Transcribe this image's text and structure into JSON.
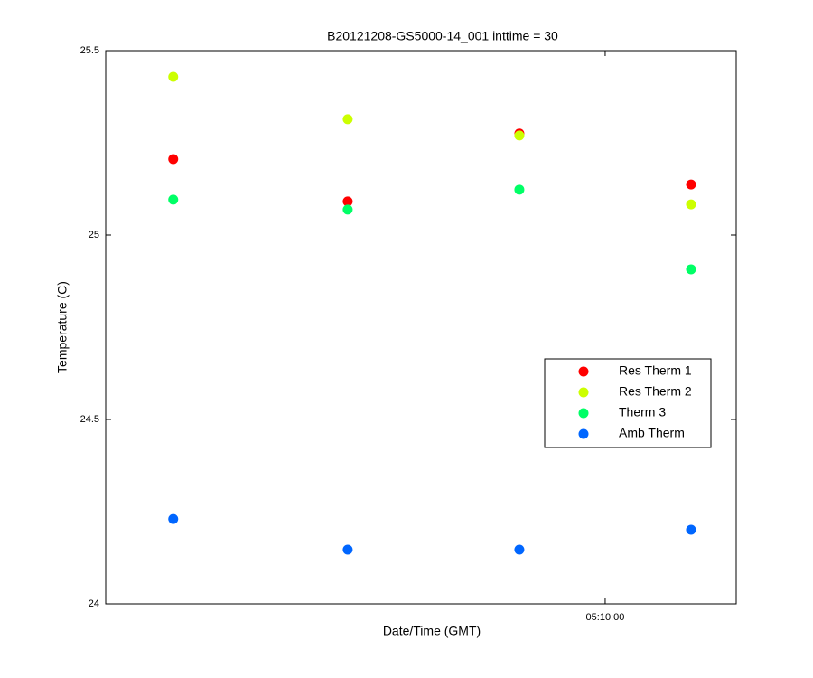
{
  "chart_data": {
    "type": "scatter",
    "title": "B20121208-GS5000-14_001 inttime = 30",
    "xlabel": "Date/Time (GMT)",
    "ylabel": "Temperature (C)",
    "x": [
      18524.5,
      18555,
      18585,
      18615
    ],
    "series": [
      {
        "name": "Res Therm 1",
        "color": "#ff0000",
        "values": [
          25.206,
          25.091,
          25.275,
          25.137
        ]
      },
      {
        "name": "Res Therm 2",
        "color": "#ccff00",
        "values": [
          25.429,
          25.314,
          25.27,
          25.083
        ]
      },
      {
        "name": "Therm 3",
        "color": "#00ff66",
        "values": [
          25.096,
          25.069,
          25.123,
          24.907
        ]
      },
      {
        "name": "Amb Therm",
        "color": "#0066ff",
        "values": [
          24.23,
          24.147,
          24.147,
          24.201
        ]
      }
    ],
    "xlim": [
      18512.7,
      18622.9
    ],
    "xticks": [
      {
        "value": 18600,
        "label": "05:10:00"
      }
    ],
    "ylim": [
      24,
      25.5
    ],
    "yticks": [
      24,
      24.5,
      25,
      25.5
    ],
    "grid": false,
    "legend": "right"
  }
}
